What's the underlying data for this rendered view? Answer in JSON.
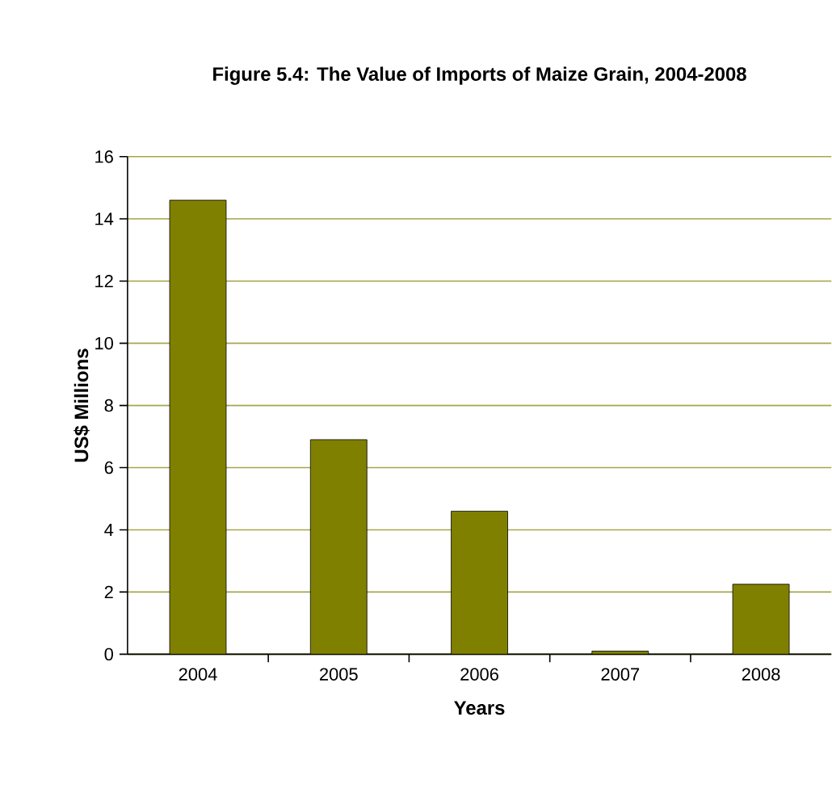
{
  "chart_data": {
    "type": "bar",
    "title": "Figure 5.4: The Value of Imports of Maize Grain, 2004-2008",
    "xlabel": "Years",
    "ylabel": "US$ Millions",
    "categories": [
      "2004",
      "2005",
      "2006",
      "2007",
      "2008"
    ],
    "values": [
      14.6,
      6.9,
      4.6,
      0.1,
      2.25
    ],
    "color": "#808000",
    "ylim": [
      0,
      16
    ],
    "yticks": [
      0,
      2,
      4,
      6,
      8,
      10,
      12,
      14,
      16
    ],
    "grid": "y"
  }
}
